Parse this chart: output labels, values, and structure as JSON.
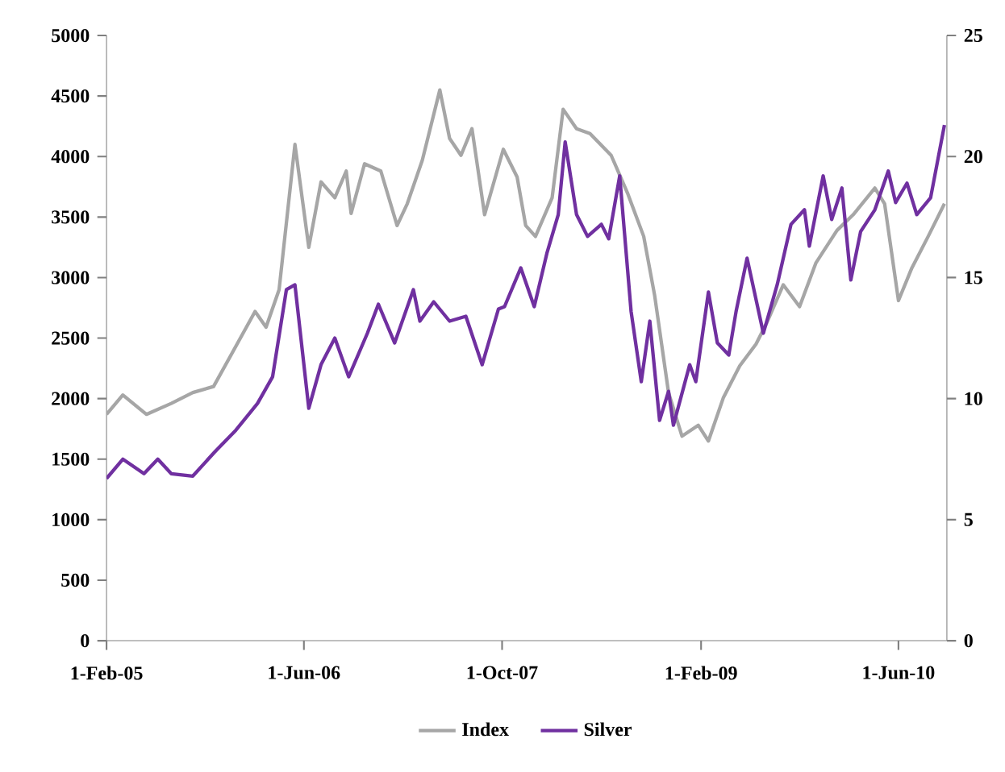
{
  "chart_data": {
    "type": "line",
    "legend": "bottom",
    "grid": false,
    "xlim": [
      "2005-02-01",
      "2010-09-28"
    ],
    "xticks": [
      {
        "value": "2005-02-01",
        "label": "1-Feb-05"
      },
      {
        "value": "2006-06-01",
        "label": "1-Jun-06"
      },
      {
        "value": "2007-10-01",
        "label": "1-Oct-07"
      },
      {
        "value": "2009-02-01",
        "label": "1-Feb-09"
      },
      {
        "value": "2010-06-01",
        "label": "1-Jun-10"
      }
    ],
    "ylim": [
      0,
      5000
    ],
    "yticks": [
      0,
      500,
      1000,
      1500,
      2000,
      2500,
      3000,
      3500,
      4000,
      4500,
      5000
    ],
    "y2lim": [
      0,
      25
    ],
    "y2ticks": [
      0,
      5,
      10,
      15,
      20,
      25
    ],
    "series": [
      {
        "name": "Index",
        "color": "#a6a6a6",
        "x": [
          "2005-02-01",
          "2005-03-13",
          "2005-05-10",
          "2005-07-10",
          "2005-09-01",
          "2005-10-22",
          "2005-12-04",
          "2006-02-01",
          "2006-02-28",
          "2006-04-01",
          "2006-05-10",
          "2006-06-13",
          "2006-07-13",
          "2006-08-16",
          "2006-09-13",
          "2006-09-25",
          "2006-10-28",
          "2006-12-07",
          "2007-01-16",
          "2007-02-10",
          "2007-03-19",
          "2007-05-01",
          "2007-05-25",
          "2007-06-22",
          "2007-07-19",
          "2007-08-19",
          "2007-10-04",
          "2007-11-07",
          "2007-11-28",
          "2007-12-22",
          "2008-02-01",
          "2008-02-28",
          "2008-04-01",
          "2008-05-04",
          "2008-06-25",
          "2008-08-04",
          "2008-09-13",
          "2008-10-10",
          "2008-11-13",
          "2008-12-16",
          "2009-01-25",
          "2009-02-19",
          "2009-03-28",
          "2009-05-07",
          "2009-06-16",
          "2009-07-13",
          "2009-08-22",
          "2009-10-01",
          "2009-11-10",
          "2010-01-01",
          "2010-02-10",
          "2010-04-04",
          "2010-04-28",
          "2010-06-01",
          "2010-07-04",
          "2010-08-13",
          "2010-09-22"
        ],
        "values": [
          1870,
          2030,
          1870,
          1960,
          2050,
          2100,
          2360,
          2720,
          2590,
          2900,
          4100,
          3250,
          3790,
          3660,
          3880,
          3530,
          3940,
          3880,
          3430,
          3610,
          3970,
          4550,
          4150,
          4010,
          4230,
          3520,
          4060,
          3830,
          3430,
          3340,
          3660,
          4390,
          4230,
          4190,
          4010,
          3700,
          3340,
          2850,
          2050,
          1690,
          1780,
          1650,
          2010,
          2270,
          2450,
          2630,
          2940,
          2760,
          3120,
          3390,
          3520,
          3740,
          3610,
          2810,
          3080,
          3340,
          3610
        ]
      },
      {
        "name": "Silver",
        "color": "#7030a0",
        "axis": "y2",
        "x": [
          "2005-02-01",
          "2005-03-13",
          "2005-05-04",
          "2005-06-07",
          "2005-07-10",
          "2005-09-01",
          "2005-10-25",
          "2005-12-16",
          "2006-02-07",
          "2006-03-16",
          "2006-04-19",
          "2006-05-10",
          "2006-06-13",
          "2006-07-13",
          "2006-08-16",
          "2006-09-19",
          "2006-11-04",
          "2006-12-01",
          "2007-01-10",
          "2007-02-25",
          "2007-03-13",
          "2007-04-16",
          "2007-05-25",
          "2007-07-04",
          "2007-08-13",
          "2007-09-22",
          "2007-10-07",
          "2007-11-16",
          "2007-12-19",
          "2008-01-19",
          "2008-02-16",
          "2008-03-04",
          "2008-04-01",
          "2008-04-28",
          "2008-06-01",
          "2008-06-19",
          "2008-07-16",
          "2008-08-13",
          "2008-09-07",
          "2008-09-28",
          "2008-10-22",
          "2008-11-13",
          "2008-11-25",
          "2009-01-04",
          "2009-01-19",
          "2009-02-19",
          "2009-03-13",
          "2009-04-10",
          "2009-04-28",
          "2009-05-25",
          "2009-07-04",
          "2009-08-07",
          "2009-09-10",
          "2009-10-13",
          "2009-10-25",
          "2009-11-28",
          "2009-12-19",
          "2010-01-13",
          "2010-02-04",
          "2010-02-28",
          "2010-04-04",
          "2010-05-07",
          "2010-05-25",
          "2010-06-22",
          "2010-07-16",
          "2010-08-19",
          "2010-09-22"
        ],
        "values": [
          6.7,
          7.5,
          6.9,
          7.5,
          6.9,
          6.8,
          7.8,
          8.7,
          9.8,
          10.9,
          14.5,
          14.7,
          9.6,
          11.4,
          12.5,
          10.9,
          12.7,
          13.9,
          12.3,
          14.5,
          13.2,
          14.0,
          13.2,
          13.4,
          11.4,
          13.7,
          13.8,
          15.4,
          13.8,
          16.0,
          17.6,
          20.6,
          17.6,
          16.7,
          17.2,
          16.6,
          19.2,
          13.6,
          10.7,
          13.2,
          9.1,
          10.3,
          8.9,
          11.4,
          10.7,
          14.4,
          12.3,
          11.8,
          13.6,
          15.8,
          12.7,
          14.7,
          17.2,
          17.8,
          16.3,
          19.2,
          17.4,
          18.7,
          14.9,
          16.9,
          17.8,
          19.4,
          18.1,
          18.9,
          17.6,
          18.3,
          21.3
        ]
      }
    ]
  }
}
